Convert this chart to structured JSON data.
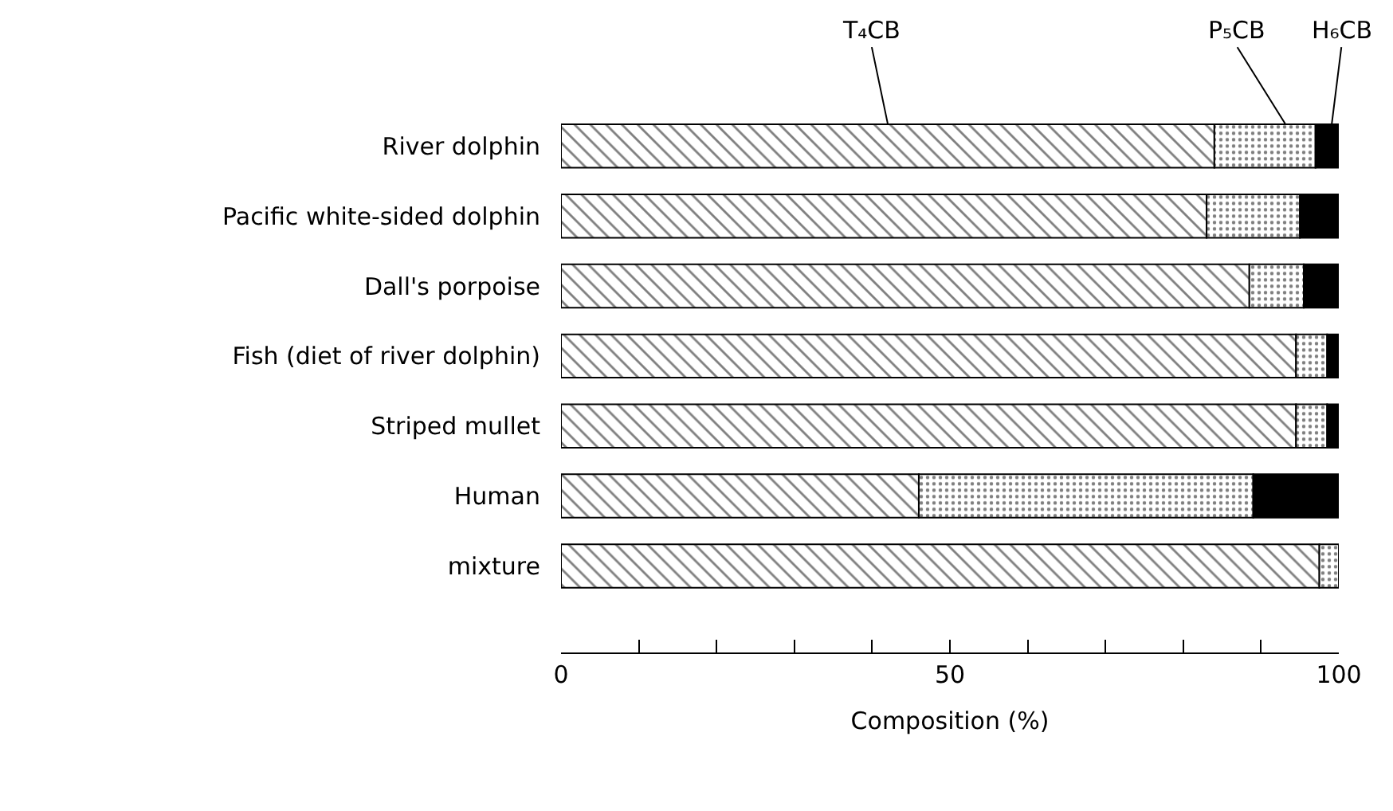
{
  "chart_data": {
    "type": "bar",
    "orientation": "horizontal",
    "stacked": true,
    "legend": false,
    "xlabel": "Composition (%)",
    "categories": [
      "River dolphin",
      "Pacific white-sided dolphin",
      "Dall's porpoise",
      "Fish (diet of river dolphin)",
      "Striped mullet",
      "Human",
      "mixture"
    ],
    "series": [
      {
        "name": "T₄CB",
        "color": "#000000",
        "values": [
          84,
          83,
          88.5,
          94.5,
          94.5,
          46,
          97.5
        ]
      },
      {
        "name": "P₅CB",
        "color": "#000000",
        "values": [
          13,
          12,
          7,
          4,
          4,
          43,
          2.5
        ]
      },
      {
        "name": "H₆CB",
        "color": "#000000",
        "values": [
          3,
          5,
          4.5,
          1.5,
          1.5,
          11,
          0
        ]
      }
    ],
    "xlim": [
      0,
      100
    ],
    "xticks": [
      0,
      {
        "value": 10,
        "label": null
      },
      {
        "value": 20,
        "label": null
      },
      {
        "value": 30,
        "label": null
      },
      {
        "value": 40,
        "label": null
      },
      50,
      {
        "value": 60,
        "label": null
      },
      {
        "value": 70,
        "label": null
      },
      {
        "value": 80,
        "label": null
      },
      {
        "value": 90,
        "label": null
      },
      100
    ]
  }
}
